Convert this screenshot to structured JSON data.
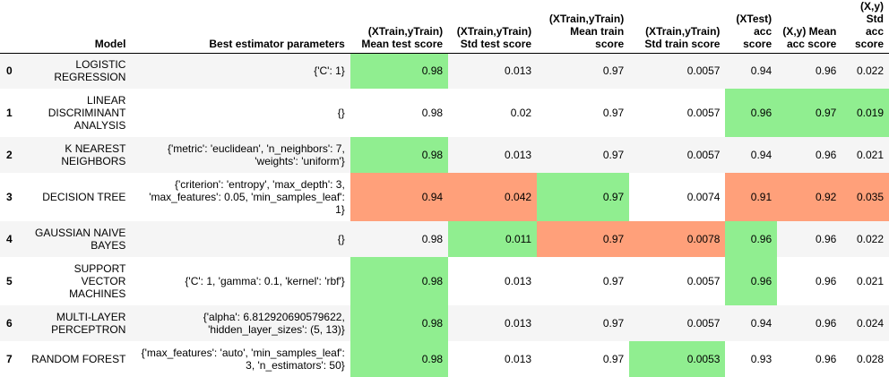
{
  "table": {
    "headers": {
      "index": "",
      "model": "Model",
      "params": "Best estimator parameters",
      "mean_test": "(XTrain,yTrain) Mean test score",
      "std_test": "(XTrain,yTrain) Std test score",
      "mean_train": "(XTrain,yTrain) Mean train score",
      "std_train": "(XTrain,yTrain) Std train score",
      "xtest_acc": "(XTest) acc score",
      "xy_mean": "(X,y) Mean acc score",
      "xy_std": "(X,y) Std acc score"
    },
    "highlight_colors": {
      "best": "#90ee90",
      "worst": "#ffa07a"
    },
    "rows": [
      {
        "index": "0",
        "model": "LOGISTIC REGRESSION",
        "params": "{'C': 1}",
        "mean_test": "0.98",
        "std_test": "0.013",
        "mean_train": "0.97",
        "std_train": "0.0057",
        "xtest_acc": "0.94",
        "xy_mean": "0.96",
        "xy_std": "0.022"
      },
      {
        "index": "1",
        "model": "LINEAR DISCRIMINANT ANALYSIS",
        "params": "{}",
        "mean_test": "0.98",
        "std_test": "0.02",
        "mean_train": "0.97",
        "std_train": "0.0057",
        "xtest_acc": "0.96",
        "xy_mean": "0.97",
        "xy_std": "0.019"
      },
      {
        "index": "2",
        "model": "K NEAREST NEIGHBORS",
        "params": "{'metric': 'euclidean', 'n_neighbors': 7, 'weights': 'uniform'}",
        "mean_test": "0.98",
        "std_test": "0.013",
        "mean_train": "0.97",
        "std_train": "0.0057",
        "xtest_acc": "0.94",
        "xy_mean": "0.96",
        "xy_std": "0.021"
      },
      {
        "index": "3",
        "model": "DECISION TREE",
        "params": "{'criterion': 'entropy', 'max_depth': 3, 'max_features': 0.05, 'min_samples_leaf': 1}",
        "mean_test": "0.94",
        "std_test": "0.042",
        "mean_train": "0.97",
        "std_train": "0.0074",
        "xtest_acc": "0.91",
        "xy_mean": "0.92",
        "xy_std": "0.035"
      },
      {
        "index": "4",
        "model": "GAUSSIAN NAIVE BAYES",
        "params": "{}",
        "mean_test": "0.98",
        "std_test": "0.011",
        "mean_train": "0.97",
        "std_train": "0.0078",
        "xtest_acc": "0.96",
        "xy_mean": "0.96",
        "xy_std": "0.022"
      },
      {
        "index": "5",
        "model": "SUPPORT VECTOR MACHINES",
        "params": "{'C': 1, 'gamma': 0.1, 'kernel': 'rbf'}",
        "mean_test": "0.98",
        "std_test": "0.013",
        "mean_train": "0.97",
        "std_train": "0.0057",
        "xtest_acc": "0.96",
        "xy_mean": "0.96",
        "xy_std": "0.021"
      },
      {
        "index": "6",
        "model": "MULTI-LAYER PERCEPTRON",
        "params": "{'alpha': 6.812920690579622, 'hidden_layer_sizes': (5, 13)}",
        "mean_test": "0.98",
        "std_test": "0.013",
        "mean_train": "0.97",
        "std_train": "0.0057",
        "xtest_acc": "0.94",
        "xy_mean": "0.96",
        "xy_std": "0.024"
      },
      {
        "index": "7",
        "model": "RANDOM FOREST",
        "params": "{'max_features': 'auto', 'min_samples_leaf': 3, 'n_estimators': 50}",
        "mean_test": "0.98",
        "std_test": "0.013",
        "mean_train": "0.97",
        "std_train": "0.0053",
        "xtest_acc": "0.93",
        "xy_mean": "0.96",
        "xy_std": "0.028"
      }
    ]
  }
}
